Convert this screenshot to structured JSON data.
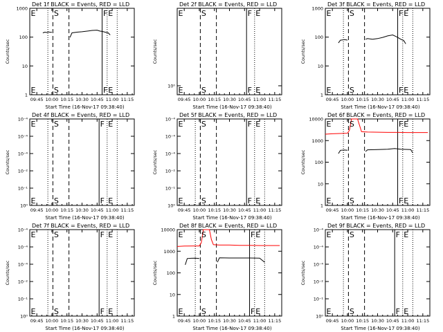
{
  "chart_data": [
    {
      "type": "line",
      "title": "Det 1f BLACK = Events, RED = LLD",
      "ylabel": "Counts/sec",
      "xlabel": "Start Time (16-Nov-17 09:38:40)",
      "xlim": [
        "09:38",
        "11:22"
      ],
      "ylim": [
        1,
        1200
      ],
      "yscale": "log",
      "yticks": [
        "1",
        "10",
        "100",
        "1000"
      ],
      "xticks": [
        "09:45",
        "10:00",
        "10:15",
        "10:30",
        "10:45",
        "11:00",
        "11:15"
      ],
      "vlines": [
        {
          "x": "09:56",
          "style": "dotted"
        },
        {
          "x": "10:01",
          "style": "dashed"
        },
        {
          "x": "10:17",
          "style": "dashed"
        },
        {
          "x": "10:50",
          "style": "solid"
        },
        {
          "x": "10:55",
          "style": "dotted"
        },
        {
          "x": "11:05",
          "style": "dotted"
        }
      ],
      "markers": [
        {
          "text": "E",
          "x": "09:39"
        },
        {
          "text": "S",
          "x": "10:02"
        },
        {
          "text": "F",
          "x": "10:51"
        },
        {
          "text": "E",
          "x": "10:56"
        }
      ],
      "series": [
        {
          "color": "#000000",
          "points": [
            [
              "09:51",
              160
            ],
            [
              "09:53",
              170
            ],
            [
              "09:55",
              165
            ],
            [
              "09:57",
              172
            ],
            [
              "09:59",
              168
            ],
            [
              "10:00",
              170
            ]
          ]
        },
        {
          "color": "#000000",
          "points": [
            [
              "10:18",
              110
            ],
            [
              "10:20",
              160
            ],
            [
              "10:25",
              170
            ],
            [
              "10:30",
              175
            ],
            [
              "10:35",
              185
            ],
            [
              "10:40",
              195
            ],
            [
              "10:45",
              200
            ],
            [
              "10:48",
              185
            ],
            [
              "10:50",
              180
            ],
            [
              "10:53",
              170
            ],
            [
              "10:56",
              160
            ],
            [
              "10:58",
              135
            ]
          ]
        }
      ]
    },
    {
      "type": "line",
      "title": "Det 2f BLACK = Events, RED = LLD",
      "ylabel": "Counts/sec",
      "xlabel": "Start Time (16-Nov-17 09:38:40)",
      "xlim": [
        "09:38",
        "11:22"
      ],
      "ylim": [
        1,
        1.8
      ],
      "yscale": "log",
      "yticks": [
        "10⁰"
      ],
      "xticks": [
        "09:45",
        "10:00",
        "10:15",
        "10:30",
        "10:45",
        "11:00",
        "11:15"
      ],
      "vlines": [
        {
          "x": "10:01",
          "style": "dashed"
        },
        {
          "x": "10:17",
          "style": "dashed"
        },
        {
          "x": "10:47",
          "style": "solid"
        },
        {
          "x": "10:55",
          "style": "dotted"
        }
      ],
      "markers": [
        {
          "text": "E",
          "x": "09:39"
        },
        {
          "text": "S",
          "x": "10:02"
        },
        {
          "text": "F",
          "x": "10:48"
        },
        {
          "text": "E",
          "x": "10:56"
        }
      ],
      "series": []
    },
    {
      "type": "line",
      "title": "Det 3f BLACK = Events, RED = LLD",
      "ylabel": "Counts/sec",
      "xlabel": "Start Time (16-Nov-17 09:38:40)",
      "xlim": [
        "09:38",
        "11:22"
      ],
      "ylim": [
        1,
        1200
      ],
      "yscale": "log",
      "yticks": [
        "1",
        "10",
        "100",
        "1000"
      ],
      "xticks": [
        "09:45",
        "10:00",
        "10:15",
        "10:30",
        "10:45",
        "11:00",
        "11:15"
      ],
      "vlines": [
        {
          "x": "09:56",
          "style": "dotted"
        },
        {
          "x": "10:01",
          "style": "dashed"
        },
        {
          "x": "10:17",
          "style": "dashed"
        },
        {
          "x": "10:50",
          "style": "solid"
        },
        {
          "x": "10:55",
          "style": "dotted"
        },
        {
          "x": "11:05",
          "style": "dotted"
        }
      ],
      "markers": [
        {
          "text": "E",
          "x": "09:39"
        },
        {
          "text": "S",
          "x": "10:02"
        },
        {
          "text": "F",
          "x": "10:51"
        },
        {
          "text": "E",
          "x": "10:56"
        }
      ],
      "series": [
        {
          "color": "#000000",
          "points": [
            [
              "09:51",
              70
            ],
            [
              "09:53",
              88
            ],
            [
              "09:55",
              90
            ],
            [
              "09:57",
              92
            ],
            [
              "09:59",
              90
            ],
            [
              "10:00",
              88
            ]
          ]
        },
        {
          "color": "#000000",
          "points": [
            [
              "10:18",
              95
            ],
            [
              "10:20",
              100
            ],
            [
              "10:25",
              95
            ],
            [
              "10:30",
              100
            ],
            [
              "10:35",
              110
            ],
            [
              "10:40",
              125
            ],
            [
              "10:45",
              135
            ],
            [
              "10:48",
              120
            ],
            [
              "10:50",
              110
            ],
            [
              "10:53",
              95
            ],
            [
              "10:56",
              85
            ],
            [
              "10:58",
              65
            ]
          ]
        }
      ]
    },
    {
      "type": "line",
      "title": "Det 4f BLACK = Events, RED = LLD",
      "ylabel": "Counts/sec",
      "xlabel": "Start Time (16-Nov-17 09:38:40)",
      "xlim": [
        "09:38",
        "11:22"
      ],
      "ylim": [
        1,
        2
      ],
      "yscale": "log",
      "yticks": [
        "10⁰",
        "10⁻¹",
        "10⁻²",
        "10⁻⁴",
        "10⁻⁴",
        "10⁻⁴"
      ],
      "xticks": [
        "09:45",
        "10:00",
        "10:15",
        "10:30",
        "10:45",
        "11:00",
        "11:15"
      ],
      "vlines": [
        {
          "x": "09:56",
          "style": "dotted"
        },
        {
          "x": "10:01",
          "style": "dashed"
        },
        {
          "x": "10:17",
          "style": "dashed"
        },
        {
          "x": "10:47",
          "style": "solid"
        },
        {
          "x": "10:55",
          "style": "dotted"
        },
        {
          "x": "11:05",
          "style": "dotted"
        }
      ],
      "markers": [
        {
          "text": "E",
          "x": "09:39"
        },
        {
          "text": "S",
          "x": "10:02"
        },
        {
          "text": "F",
          "x": "10:48"
        },
        {
          "text": "E",
          "x": "10:56"
        }
      ],
      "series": []
    },
    {
      "type": "line",
      "title": "Det 5f BLACK = Events, RED = LLD",
      "ylabel": "Counts/sec",
      "xlabel": "Start Time (16-Nov-17 09:38:40)",
      "xlim": [
        "09:38",
        "11:22"
      ],
      "ylim": [
        1,
        2
      ],
      "yscale": "log",
      "yticks": [
        "10⁰",
        "10⁻¹",
        "10⁻²",
        "10⁻⁴",
        "10⁻⁴",
        "10⁻⁴"
      ],
      "xticks": [
        "09:45",
        "10:00",
        "10:15",
        "10:30",
        "10:45",
        "11:00",
        "11:15"
      ],
      "vlines": [
        {
          "x": "09:56",
          "style": "dotted"
        },
        {
          "x": "10:01",
          "style": "dashed"
        },
        {
          "x": "10:17",
          "style": "dashed"
        },
        {
          "x": "10:47",
          "style": "solid"
        },
        {
          "x": "10:55",
          "style": "dotted"
        },
        {
          "x": "11:05",
          "style": "dotted"
        }
      ],
      "markers": [
        {
          "text": "E",
          "x": "09:39"
        },
        {
          "text": "S",
          "x": "10:02"
        },
        {
          "text": "F",
          "x": "10:48"
        },
        {
          "text": "E",
          "x": "10:56"
        }
      ],
      "series": []
    },
    {
      "type": "line",
      "title": "Det 6f BLACK = Events, RED = LLD",
      "ylabel": "Counts/sec",
      "xlabel": "Start Time (16-Nov-17 09:38:40)",
      "xlim": [
        "09:38",
        "11:22"
      ],
      "ylim": [
        1,
        12000
      ],
      "yscale": "log",
      "yticks": [
        "1",
        "10",
        "100",
        "1000",
        "10000"
      ],
      "xticks": [
        "09:45",
        "10:00",
        "10:15",
        "10:30",
        "10:45",
        "11:00",
        "11:15"
      ],
      "vlines": [
        {
          "x": "09:56",
          "style": "dotted"
        },
        {
          "x": "10:01",
          "style": "dashed"
        },
        {
          "x": "10:17",
          "style": "dashed"
        },
        {
          "x": "10:50",
          "style": "solid"
        },
        {
          "x": "10:55",
          "style": "dotted"
        },
        {
          "x": "11:05",
          "style": "dotted"
        }
      ],
      "markers": [
        {
          "text": "E",
          "x": "09:39"
        },
        {
          "text": "S",
          "x": "10:02"
        },
        {
          "text": "F",
          "x": "10:51"
        },
        {
          "text": "E",
          "x": "10:56"
        }
      ],
      "series": [
        {
          "color": "#ff0000",
          "points": [
            [
              "09:38",
              2300
            ],
            [
              "09:45",
              2400
            ],
            [
              "09:55",
              2500
            ],
            [
              "10:00",
              2550
            ],
            [
              "10:02",
              3500
            ],
            [
              "10:04",
              12000
            ],
            [
              "10:10",
              12000
            ],
            [
              "10:12",
              6000
            ],
            [
              "10:14",
              3000
            ],
            [
              "10:20",
              2900
            ],
            [
              "10:30",
              2850
            ],
            [
              "10:40",
              2800
            ],
            [
              "10:50",
              2800
            ],
            [
              "11:00",
              2750
            ],
            [
              "11:10",
              2750
            ],
            [
              "11:20",
              2750
            ]
          ]
        },
        {
          "color": "#000000",
          "points": [
            [
              "09:51",
              280
            ],
            [
              "09:53",
              400
            ],
            [
              "09:57",
              410
            ],
            [
              "10:00",
              400
            ]
          ]
        },
        {
          "color": "#000000",
          "points": [
            [
              "10:18",
              350
            ],
            [
              "10:20",
              420
            ],
            [
              "10:30",
              430
            ],
            [
              "10:40",
              450
            ],
            [
              "10:47",
              480
            ],
            [
              "10:53",
              450
            ],
            [
              "10:58",
              440
            ],
            [
              "11:03",
              430
            ],
            [
              "11:05",
              300
            ]
          ]
        }
      ]
    },
    {
      "type": "line",
      "title": "Det 7f BLACK = Events, RED = LLD",
      "ylabel": "Counts/sec",
      "xlabel": "Start Time (16-Nov-17 09:38:40)",
      "xlim": [
        "09:38",
        "11:22"
      ],
      "ylim": [
        1,
        2
      ],
      "yscale": "log",
      "yticks": [
        "10⁰",
        "10⁻¹",
        "10⁻²",
        "10⁻⁴",
        "10⁻⁴",
        "10⁻⁴"
      ],
      "xticks": [
        "09:45",
        "10:00",
        "10:15",
        "10:30",
        "10:45",
        "11:00",
        "11:15"
      ],
      "vlines": [
        {
          "x": "09:56",
          "style": "dotted"
        },
        {
          "x": "10:01",
          "style": "dashed"
        },
        {
          "x": "10:17",
          "style": "dashed"
        },
        {
          "x": "10:47",
          "style": "solid"
        },
        {
          "x": "10:55",
          "style": "dotted"
        },
        {
          "x": "11:05",
          "style": "dotted"
        }
      ],
      "markers": [
        {
          "text": "E",
          "x": "09:39"
        },
        {
          "text": "S",
          "x": "10:02"
        },
        {
          "text": "F",
          "x": "10:48"
        },
        {
          "text": "E",
          "x": "10:56"
        }
      ],
      "series": []
    },
    {
      "type": "line",
      "title": "Det 8f BLACK = Events, RED = LLD",
      "ylabel": "Counts/sec",
      "xlabel": "Start Time (16-Nov-17 09:38:40)",
      "xlim": [
        "09:38",
        "11:22"
      ],
      "ylim": [
        1,
        15000
      ],
      "yscale": "log",
      "yticks": [
        "1",
        "10",
        "100",
        "1000",
        "10000"
      ],
      "xticks": [
        "09:45",
        "10:00",
        "10:15",
        "10:30",
        "10:45",
        "11:00",
        "11:15"
      ],
      "vlines": [
        {
          "x": "09:56",
          "style": "dotted"
        },
        {
          "x": "10:01",
          "style": "dashed"
        },
        {
          "x": "10:17",
          "style": "dashed"
        },
        {
          "x": "10:50",
          "style": "solid"
        },
        {
          "x": "10:55",
          "style": "dotted"
        },
        {
          "x": "11:05",
          "style": "dotted"
        }
      ],
      "markers": [
        {
          "text": "E",
          "x": "09:39"
        },
        {
          "text": "S",
          "x": "10:02"
        },
        {
          "text": "F",
          "x": "10:51"
        },
        {
          "text": "E",
          "x": "10:56"
        }
      ],
      "series": [
        {
          "color": "#ff0000",
          "points": [
            [
              "09:38",
              2300
            ],
            [
              "09:45",
              2400
            ],
            [
              "09:55",
              2450
            ],
            [
              "10:00",
              2450
            ],
            [
              "10:02",
              3500
            ],
            [
              "10:04",
              15000
            ],
            [
              "10:10",
              15000
            ],
            [
              "10:12",
              5000
            ],
            [
              "10:14",
              2800
            ],
            [
              "10:20",
              2700
            ],
            [
              "10:30",
              2700
            ],
            [
              "10:40",
              2600
            ],
            [
              "10:50",
              2600
            ],
            [
              "11:00",
              2550
            ],
            [
              "11:10",
              2550
            ],
            [
              "11:20",
              2550
            ]
          ]
        },
        {
          "color": "#000000",
          "points": [
            [
              "09:46",
              300
            ],
            [
              "09:48",
              600
            ],
            [
              "09:52",
              620
            ],
            [
              "09:56",
              630
            ],
            [
              "10:00",
              600
            ]
          ]
        },
        {
          "color": "#000000",
          "points": [
            [
              "10:18",
              400
            ],
            [
              "10:20",
              650
            ],
            [
              "10:30",
              640
            ],
            [
              "10:40",
              640
            ],
            [
              "10:50",
              640
            ],
            [
              "11:00",
              630
            ],
            [
              "11:05",
              400
            ]
          ]
        }
      ]
    },
    {
      "type": "line",
      "title": "Det 9f BLACK = Events, RED = LLD",
      "ylabel": "Counts/sec",
      "xlabel": "Start Time (16-Nov-17 09:38:40)",
      "xlim": [
        "09:38",
        "11:22"
      ],
      "ylim": [
        1,
        2
      ],
      "yscale": "log",
      "yticks": [
        "10⁰",
        "10⁻¹",
        "10⁻²",
        "10⁻⁴",
        "10⁻⁴",
        "10⁻⁴"
      ],
      "xticks": [
        "09:45",
        "10:00",
        "10:15",
        "10:30",
        "10:45",
        "11:00",
        "11:15"
      ],
      "vlines": [
        {
          "x": "09:56",
          "style": "dotted"
        },
        {
          "x": "10:01",
          "style": "dashed"
        },
        {
          "x": "10:17",
          "style": "dashed"
        },
        {
          "x": "10:47",
          "style": "solid"
        },
        {
          "x": "10:55",
          "style": "dotted"
        },
        {
          "x": "11:05",
          "style": "dotted"
        }
      ],
      "markers": [
        {
          "text": "E",
          "x": "09:39"
        },
        {
          "text": "S",
          "x": "10:02"
        },
        {
          "text": "F",
          "x": "10:48"
        },
        {
          "text": "E",
          "x": "10:56"
        }
      ],
      "series": []
    }
  ]
}
